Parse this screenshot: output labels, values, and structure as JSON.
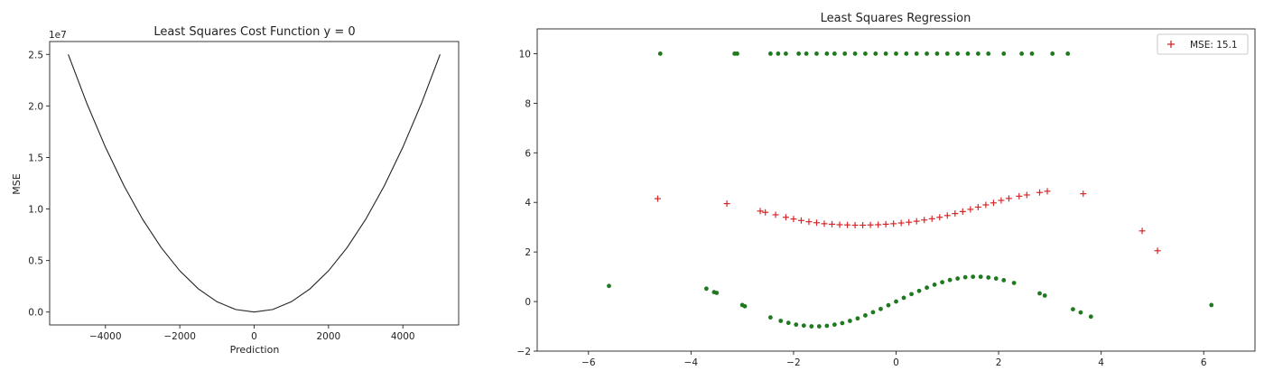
{
  "chart_data": [
    {
      "type": "line",
      "title": "Least Squares Cost Function y = 0",
      "xlabel": "Prediction",
      "ylabel": "MSE",
      "offset_text": "1e7",
      "xlim": [
        -5500,
        5500
      ],
      "ylim": [
        -1250000,
        26250000
      ],
      "grid": false,
      "x_ticks": [
        -4000,
        -2000,
        0,
        2000,
        4000
      ],
      "x_tick_labels": [
        "−4000",
        "−2000",
        "0",
        "2000",
        "4000"
      ],
      "y_ticks": [
        0,
        5000000,
        10000000,
        15000000,
        20000000,
        25000000
      ],
      "y_tick_labels": [
        "0.0",
        "0.5",
        "1.0",
        "1.5",
        "2.0",
        "2.5"
      ],
      "series": [
        {
          "color": "#222222",
          "x": [
            -5000,
            -4500,
            -4000,
            -3500,
            -3000,
            -2500,
            -2000,
            -1500,
            -1000,
            -500,
            0,
            500,
            1000,
            1500,
            2000,
            2500,
            3000,
            3500,
            4000,
            4500,
            5000
          ],
          "y": [
            25000000,
            20250000,
            16000000,
            12250000,
            9000000,
            6250000,
            4000000,
            2250000,
            1000000,
            250000,
            0,
            250000,
            1000000,
            2250000,
            4000000,
            6250000,
            9000000,
            12250000,
            16000000,
            20250000,
            25000000
          ]
        }
      ]
    },
    {
      "type": "scatter",
      "title": "Least Squares Regression",
      "xlim": [
        -7,
        7
      ],
      "ylim": [
        -2,
        11
      ],
      "grid": false,
      "legend_position": "top-right",
      "x_ticks": [
        -6,
        -4,
        -2,
        0,
        2,
        4,
        6
      ],
      "x_tick_labels": [
        "−6",
        "−4",
        "−2",
        "0",
        "2",
        "4",
        "6"
      ],
      "y_ticks": [
        -2,
        0,
        2,
        4,
        6,
        8,
        10
      ],
      "y_tick_labels": [
        "−2",
        "0",
        "2",
        "4",
        "6",
        "8",
        "10"
      ],
      "series": [
        {
          "marker": "circle",
          "color": "#1f7a1f",
          "points": [
            [
              -4.6,
              10
            ],
            [
              -3.15,
              10
            ],
            [
              -3.1,
              10
            ],
            [
              -2.45,
              10
            ],
            [
              -2.3,
              10
            ],
            [
              -2.15,
              10
            ],
            [
              -1.9,
              10
            ],
            [
              -1.75,
              10
            ],
            [
              -1.55,
              10
            ],
            [
              -1.35,
              10
            ],
            [
              -1.2,
              10
            ],
            [
              -1.0,
              10
            ],
            [
              -0.8,
              10
            ],
            [
              -0.6,
              10
            ],
            [
              -0.4,
              10
            ],
            [
              -0.2,
              10
            ],
            [
              0.0,
              10
            ],
            [
              0.2,
              10
            ],
            [
              0.4,
              10
            ],
            [
              0.6,
              10
            ],
            [
              0.8,
              10
            ],
            [
              1.0,
              10
            ],
            [
              1.2,
              10
            ],
            [
              1.4,
              10
            ],
            [
              1.6,
              10
            ],
            [
              1.8,
              10
            ],
            [
              2.1,
              10
            ],
            [
              2.45,
              10
            ],
            [
              2.65,
              10
            ],
            [
              3.05,
              10
            ],
            [
              3.35,
              10
            ],
            [
              -5.6,
              0.63
            ],
            [
              -3.7,
              0.52
            ],
            [
              -3.55,
              0.38
            ],
            [
              -3.5,
              0.35
            ],
            [
              -3.0,
              -0.14
            ],
            [
              -2.95,
              -0.19
            ],
            [
              -2.45,
              -0.64
            ],
            [
              -2.25,
              -0.78
            ],
            [
              -2.1,
              -0.86
            ],
            [
              -1.95,
              -0.93
            ],
            [
              -1.8,
              -0.97
            ],
            [
              -1.65,
              -1.0
            ],
            [
              -1.5,
              -1.0
            ],
            [
              -1.35,
              -0.98
            ],
            [
              -1.2,
              -0.93
            ],
            [
              -1.05,
              -0.87
            ],
            [
              -0.9,
              -0.78
            ],
            [
              -0.75,
              -0.68
            ],
            [
              -0.6,
              -0.56
            ],
            [
              -0.45,
              -0.43
            ],
            [
              -0.3,
              -0.3
            ],
            [
              -0.15,
              -0.15
            ],
            [
              0.0,
              0.0
            ],
            [
              0.15,
              0.15
            ],
            [
              0.3,
              0.3
            ],
            [
              0.45,
              0.43
            ],
            [
              0.6,
              0.56
            ],
            [
              0.75,
              0.68
            ],
            [
              0.9,
              0.78
            ],
            [
              1.05,
              0.87
            ],
            [
              1.2,
              0.93
            ],
            [
              1.35,
              0.98
            ],
            [
              1.5,
              1.0
            ],
            [
              1.65,
              1.0
            ],
            [
              1.8,
              0.97
            ],
            [
              1.95,
              0.93
            ],
            [
              2.1,
              0.86
            ],
            [
              2.3,
              0.75
            ],
            [
              2.8,
              0.33
            ],
            [
              2.9,
              0.24
            ],
            [
              3.45,
              -0.31
            ],
            [
              3.6,
              -0.44
            ],
            [
              3.8,
              -0.61
            ],
            [
              6.15,
              -0.14
            ]
          ]
        },
        {
          "name": "MSE: 15.1",
          "marker": "plus",
          "color": "#d62728",
          "points": [
            [
              -4.65,
              4.15
            ],
            [
              -3.3,
              3.95
            ],
            [
              -2.65,
              3.65
            ],
            [
              -2.55,
              3.6
            ],
            [
              -2.35,
              3.5
            ],
            [
              -2.15,
              3.4
            ],
            [
              -2.0,
              3.33
            ],
            [
              -1.85,
              3.27
            ],
            [
              -1.7,
              3.22
            ],
            [
              -1.55,
              3.18
            ],
            [
              -1.4,
              3.14
            ],
            [
              -1.25,
              3.12
            ],
            [
              -1.1,
              3.1
            ],
            [
              -0.95,
              3.09
            ],
            [
              -0.8,
              3.08
            ],
            [
              -0.65,
              3.08
            ],
            [
              -0.5,
              3.09
            ],
            [
              -0.35,
              3.1
            ],
            [
              -0.2,
              3.12
            ],
            [
              -0.05,
              3.14
            ],
            [
              0.1,
              3.17
            ],
            [
              0.25,
              3.2
            ],
            [
              0.4,
              3.24
            ],
            [
              0.55,
              3.29
            ],
            [
              0.7,
              3.34
            ],
            [
              0.85,
              3.4
            ],
            [
              1.0,
              3.47
            ],
            [
              1.15,
              3.55
            ],
            [
              1.3,
              3.63
            ],
            [
              1.45,
              3.72
            ],
            [
              1.6,
              3.81
            ],
            [
              1.75,
              3.9
            ],
            [
              1.9,
              3.98
            ],
            [
              2.05,
              4.08
            ],
            [
              2.2,
              4.16
            ],
            [
              2.4,
              4.25
            ],
            [
              2.55,
              4.3
            ],
            [
              2.8,
              4.4
            ],
            [
              2.95,
              4.45
            ],
            [
              3.65,
              4.35
            ],
            [
              4.8,
              2.85
            ],
            [
              5.1,
              2.05
            ]
          ]
        }
      ]
    }
  ]
}
